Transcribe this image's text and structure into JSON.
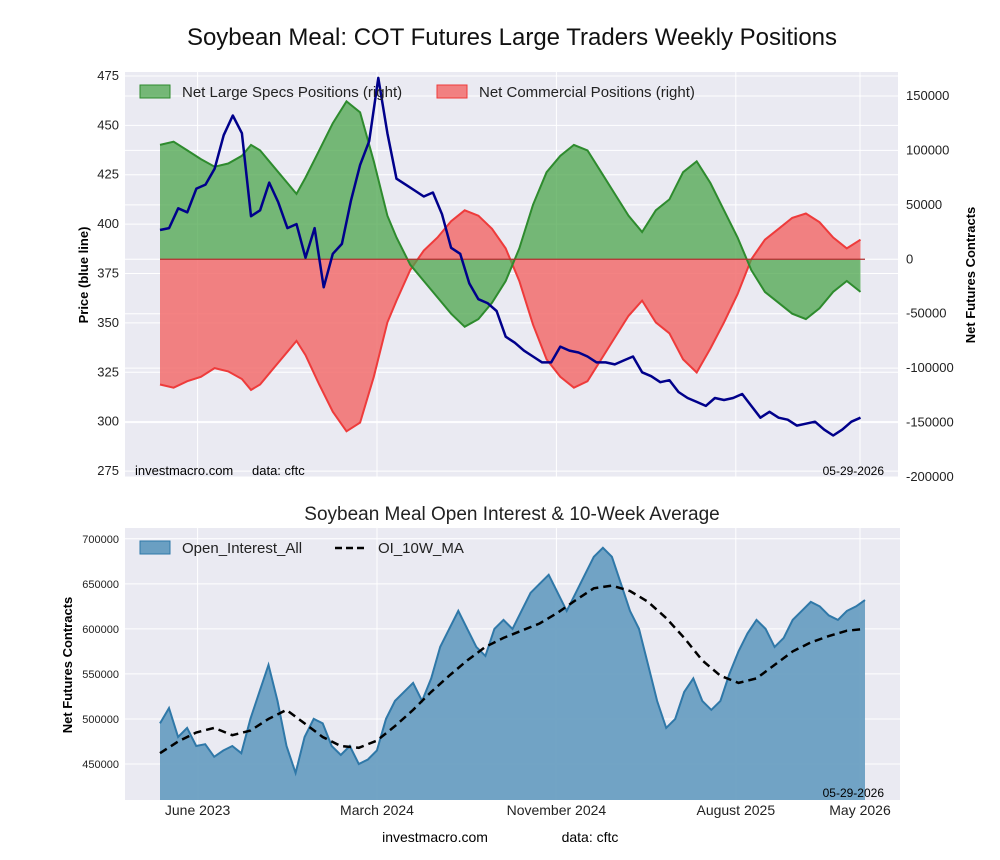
{
  "title": "Soybean Meal: COT Futures Large Traders Weekly Positions",
  "colors": {
    "plot_bg": "#eaeaf2",
    "grid": "#ffffff",
    "price": "#00008b",
    "specs_fill": "#4ca64c",
    "specs_line": "#2e8b2e",
    "comm_fill": "#f26d6d",
    "comm_line": "#ee3b3b",
    "oi_fill": "#6a9fc2",
    "oi_line": "#2f78a8",
    "ma_line": "#000000"
  },
  "footer": {
    "site": "investmacro.com",
    "source": "data: cftc"
  },
  "chart_data": [
    {
      "type": "area",
      "watermark_site": "investmacro.com",
      "watermark_source": "data: cftc",
      "date_label": "05-29-2026",
      "ylabel_left": "Price (blue line)",
      "ylabel_right": "Net Futures Contracts",
      "ylim_left": [
        272,
        477
      ],
      "ylim_right": [
        -200000,
        172000
      ],
      "ticks_left": [
        275,
        300,
        325,
        350,
        375,
        400,
        425,
        450,
        475
      ],
      "ticks_right": [
        -200000,
        -150000,
        -100000,
        -50000,
        0,
        50000,
        100000,
        150000
      ],
      "x_range": [
        0,
        155
      ],
      "legend": {
        "placement": "top-left",
        "entries": [
          "Net Large Specs Positions (right)",
          "Net Commercial Positions (right)"
        ]
      },
      "series": [
        {
          "name": "Net Large Specs Positions (right)",
          "axis": "right",
          "x": [
            0,
            3,
            6,
            9,
            12,
            15,
            18,
            20,
            22,
            25,
            28,
            30,
            32,
            35,
            38,
            41,
            44,
            47,
            50,
            52,
            55,
            58,
            61,
            64,
            67,
            70,
            73,
            76,
            79,
            82,
            85,
            88,
            91,
            94,
            97,
            100,
            103,
            106,
            109,
            112,
            115,
            118,
            121,
            124,
            127,
            130,
            133,
            136,
            139,
            142,
            145,
            148,
            151,
            154
          ],
          "values": [
            105000,
            108000,
            100000,
            92000,
            85000,
            88000,
            95000,
            105000,
            100000,
            85000,
            70000,
            60000,
            75000,
            100000,
            125000,
            145000,
            135000,
            90000,
            40000,
            20000,
            -5000,
            -20000,
            -35000,
            -50000,
            -62000,
            -55000,
            -40000,
            -20000,
            10000,
            50000,
            80000,
            95000,
            105000,
            100000,
            80000,
            60000,
            40000,
            25000,
            45000,
            55000,
            80000,
            90000,
            70000,
            45000,
            20000,
            -10000,
            -30000,
            -40000,
            -50000,
            -55000,
            -45000,
            -30000,
            -20000,
            -30000
          ]
        },
        {
          "name": "Net Commercial Positions (right)",
          "axis": "right",
          "x": [
            0,
            3,
            6,
            9,
            12,
            15,
            18,
            20,
            22,
            25,
            28,
            30,
            32,
            35,
            38,
            41,
            44,
            47,
            50,
            52,
            55,
            58,
            61,
            64,
            67,
            70,
            73,
            76,
            79,
            82,
            85,
            88,
            91,
            94,
            97,
            100,
            103,
            106,
            109,
            112,
            115,
            118,
            121,
            124,
            127,
            130,
            133,
            136,
            139,
            142,
            145,
            148,
            151,
            154
          ],
          "values": [
            -115000,
            -118000,
            -112000,
            -108000,
            -100000,
            -103000,
            -110000,
            -120000,
            -115000,
            -100000,
            -85000,
            -75000,
            -88000,
            -115000,
            -140000,
            -158000,
            -150000,
            -108000,
            -58000,
            -38000,
            -10000,
            8000,
            20000,
            35000,
            45000,
            40000,
            28000,
            10000,
            -20000,
            -60000,
            -92000,
            -108000,
            -118000,
            -112000,
            -92000,
            -72000,
            -52000,
            -38000,
            -58000,
            -68000,
            -92000,
            -104000,
            -82000,
            -58000,
            -32000,
            0,
            18000,
            28000,
            38000,
            42000,
            34000,
            20000,
            10000,
            18000
          ]
        },
        {
          "name": "Price",
          "axis": "left",
          "x": [
            0,
            2,
            4,
            6,
            8,
            10,
            12,
            14,
            16,
            18,
            20,
            22,
            24,
            26,
            28,
            30,
            32,
            34,
            36,
            38,
            40,
            42,
            44,
            46,
            48,
            50,
            52,
            54,
            56,
            58,
            60,
            62,
            64,
            66,
            68,
            70,
            72,
            74,
            76,
            78,
            80,
            82,
            84,
            86,
            88,
            90,
            92,
            94,
            96,
            98,
            100,
            102,
            104,
            106,
            108,
            110,
            112,
            114,
            116,
            118,
            120,
            122,
            124,
            126,
            128,
            130,
            132,
            134,
            136,
            138,
            140,
            142,
            144,
            146,
            148,
            150,
            152,
            154
          ],
          "values": [
            397,
            398,
            408,
            406,
            418,
            420,
            428,
            445,
            455,
            446,
            404,
            407,
            421,
            411,
            398,
            400,
            383,
            398,
            368,
            385,
            390,
            412,
            430,
            442,
            474,
            446,
            423,
            420,
            417,
            414,
            416,
            405,
            388,
            385,
            370,
            362,
            360,
            356,
            343,
            340,
            336,
            333,
            330,
            330,
            338,
            336,
            335,
            333,
            330,
            330,
            329,
            331,
            333,
            325,
            323,
            320,
            321,
            315,
            312,
            310,
            308,
            312,
            311,
            312,
            314,
            308,
            302,
            305,
            302,
            301,
            298,
            299,
            300,
            296,
            293,
            296,
            300,
            302
          ]
        }
      ]
    },
    {
      "type": "area",
      "title": "Soybean Meal Open Interest & 10-Week Average",
      "date_label": "05-29-2026",
      "ylabel": "Net Futures Contracts",
      "ylim": [
        410000,
        712000
      ],
      "ticks_y": [
        450000,
        500000,
        550000,
        600000,
        650000,
        700000
      ],
      "x_ticks": [
        "June 2023",
        "March 2024",
        "November 2024",
        "August 2025",
        "May 2026"
      ],
      "x_tick_positions": [
        0.04,
        0.3,
        0.56,
        0.82,
        1.0
      ],
      "x_range": [
        0,
        156
      ],
      "legend": {
        "placement": "top-left",
        "entries": [
          "Open_Interest_All",
          "OI_10W_MA"
        ]
      },
      "series": [
        {
          "name": "Open_Interest_All",
          "x": [
            0,
            2,
            4,
            6,
            8,
            10,
            12,
            14,
            16,
            18,
            20,
            22,
            24,
            26,
            28,
            30,
            32,
            34,
            36,
            38,
            40,
            42,
            44,
            46,
            48,
            50,
            52,
            54,
            56,
            58,
            60,
            62,
            64,
            66,
            68,
            70,
            72,
            74,
            76,
            78,
            80,
            82,
            84,
            86,
            88,
            90,
            92,
            94,
            96,
            98,
            100,
            102,
            104,
            106,
            108,
            110,
            112,
            114,
            116,
            118,
            120,
            122,
            124,
            126,
            128,
            130,
            132,
            134,
            136,
            138,
            140,
            142,
            144,
            146,
            148,
            150,
            152,
            154,
            156
          ],
          "values": [
            495000,
            512000,
            480000,
            490000,
            470000,
            472000,
            458000,
            465000,
            470000,
            462000,
            500000,
            530000,
            560000,
            520000,
            470000,
            440000,
            480000,
            500000,
            495000,
            470000,
            460000,
            470000,
            450000,
            455000,
            465000,
            500000,
            520000,
            530000,
            540000,
            520000,
            545000,
            580000,
            600000,
            620000,
            600000,
            580000,
            570000,
            600000,
            610000,
            600000,
            620000,
            640000,
            650000,
            660000,
            640000,
            620000,
            640000,
            660000,
            680000,
            690000,
            680000,
            650000,
            620000,
            600000,
            560000,
            520000,
            490000,
            500000,
            530000,
            545000,
            520000,
            510000,
            520000,
            550000,
            575000,
            595000,
            610000,
            600000,
            580000,
            590000,
            610000,
            620000,
            630000,
            625000,
            615000,
            610000,
            620000,
            625000,
            632000
          ]
        },
        {
          "name": "OI_10W_MA",
          "x": [
            0,
            4,
            8,
            12,
            16,
            20,
            24,
            28,
            32,
            36,
            40,
            44,
            48,
            52,
            56,
            60,
            64,
            68,
            72,
            76,
            80,
            84,
            88,
            92,
            96,
            100,
            104,
            108,
            112,
            116,
            120,
            124,
            128,
            132,
            136,
            140,
            144,
            148,
            152,
            156
          ],
          "values": [
            462000,
            475000,
            485000,
            490000,
            482000,
            487000,
            500000,
            510000,
            495000,
            480000,
            470000,
            468000,
            476000,
            492000,
            510000,
            530000,
            548000,
            565000,
            580000,
            590000,
            598000,
            606000,
            618000,
            632000,
            645000,
            648000,
            642000,
            630000,
            612000,
            590000,
            565000,
            548000,
            540000,
            545000,
            560000,
            575000,
            585000,
            592000,
            598000,
            600000
          ]
        }
      ]
    }
  ]
}
